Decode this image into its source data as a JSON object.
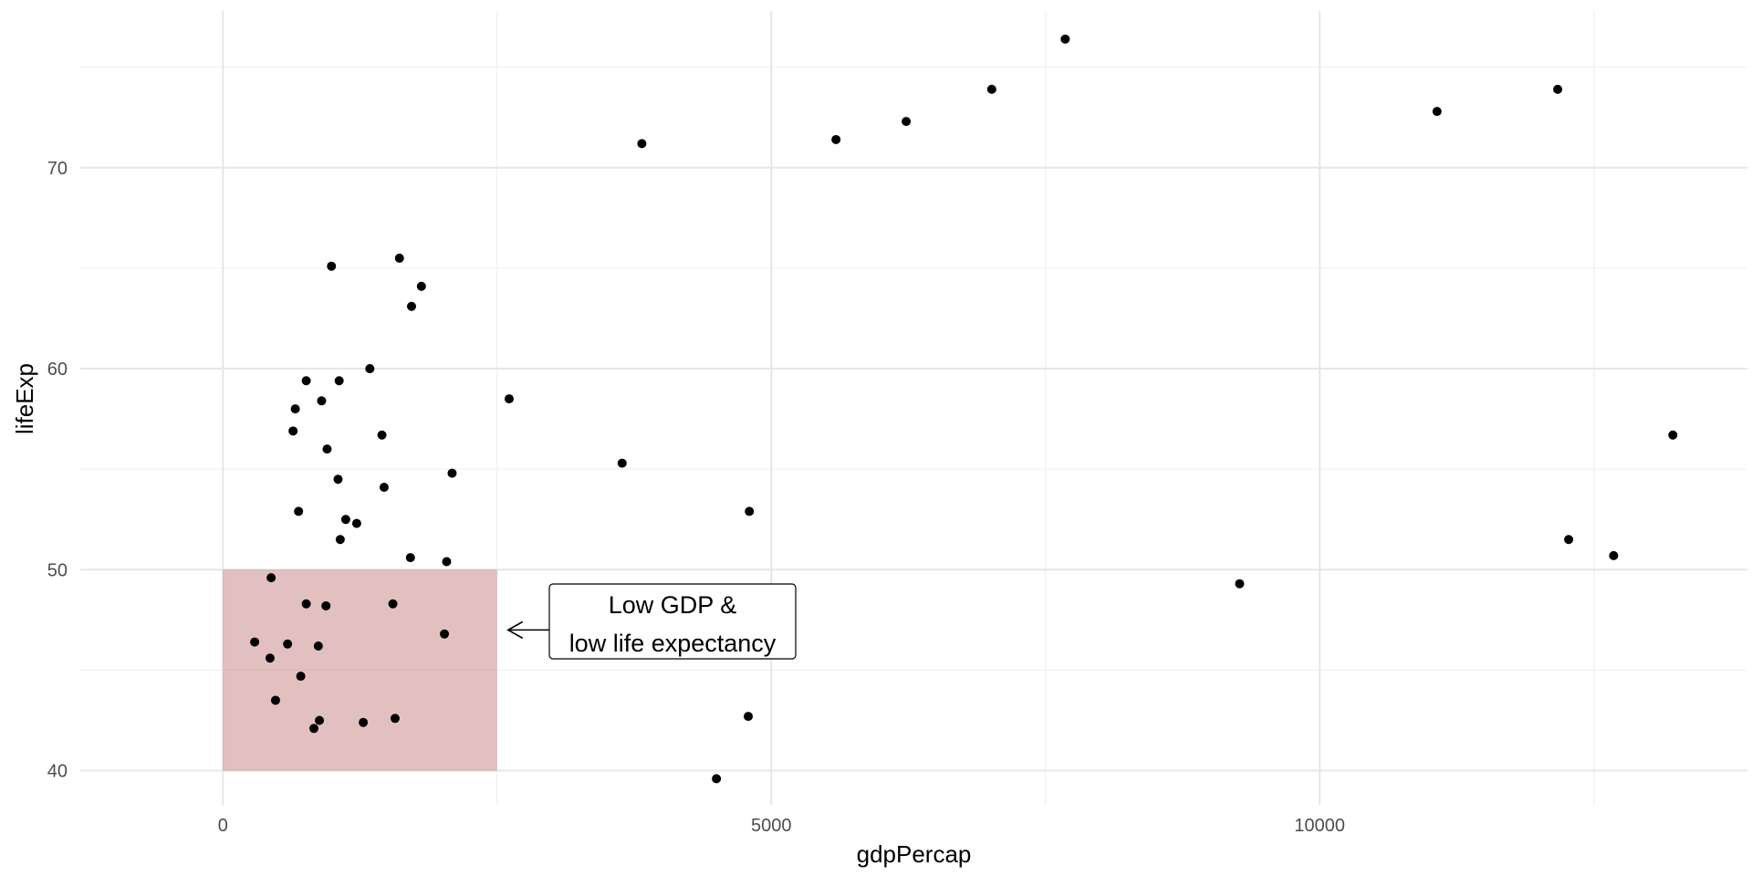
{
  "chart_data": {
    "type": "scatter",
    "title": "",
    "xlabel": "gdpPercap",
    "ylabel": "lifeExp",
    "xlim": [
      -1300,
      13900
    ],
    "ylim": [
      38.3,
      77.8
    ],
    "x_major_ticks": [
      0,
      5000,
      10000
    ],
    "x_tick_labels": [
      "0",
      "5000",
      "10000"
    ],
    "x_minor_ticks": [
      2500,
      7500,
      12500
    ],
    "y_major_ticks": [
      40,
      50,
      60,
      70
    ],
    "y_tick_labels": [
      "40",
      "50",
      "60",
      "70"
    ],
    "y_minor_ticks": [
      45,
      55,
      65,
      75
    ],
    "grid": true,
    "point_color": "#000000",
    "highlight_region": {
      "xmin": 0,
      "xmax": 2500,
      "ymin": 40,
      "ymax": 50,
      "fill": "#b55a5a",
      "opacity": 0.38
    },
    "annotation": {
      "lines": [
        "Low GDP &",
        "low life expectancy"
      ],
      "arrow_to": [
        2600,
        47
      ]
    },
    "points": [
      {
        "x": 990,
        "y": 65.1
      },
      {
        "x": 1610,
        "y": 65.5
      },
      {
        "x": 1810,
        "y": 64.1
      },
      {
        "x": 1720,
        "y": 63.1
      },
      {
        "x": 1340,
        "y": 60.0
      },
      {
        "x": 760,
        "y": 59.4
      },
      {
        "x": 1060,
        "y": 59.4
      },
      {
        "x": 660,
        "y": 58.0
      },
      {
        "x": 900,
        "y": 58.4
      },
      {
        "x": 640,
        "y": 56.9
      },
      {
        "x": 1450,
        "y": 56.7
      },
      {
        "x": 950,
        "y": 56.0
      },
      {
        "x": 1050,
        "y": 54.5
      },
      {
        "x": 2090,
        "y": 54.8
      },
      {
        "x": 1470,
        "y": 54.1
      },
      {
        "x": 690,
        "y": 52.9
      },
      {
        "x": 1120,
        "y": 52.5
      },
      {
        "x": 1220,
        "y": 52.3
      },
      {
        "x": 1070,
        "y": 51.5
      },
      {
        "x": 1710,
        "y": 50.6
      },
      {
        "x": 2040,
        "y": 50.4
      },
      {
        "x": 440,
        "y": 49.6
      },
      {
        "x": 760,
        "y": 48.3
      },
      {
        "x": 940,
        "y": 48.2
      },
      {
        "x": 1550,
        "y": 48.3
      },
      {
        "x": 2020,
        "y": 46.8
      },
      {
        "x": 290,
        "y": 46.4
      },
      {
        "x": 590,
        "y": 46.3
      },
      {
        "x": 870,
        "y": 46.2
      },
      {
        "x": 430,
        "y": 45.6
      },
      {
        "x": 710,
        "y": 44.7
      },
      {
        "x": 480,
        "y": 43.5
      },
      {
        "x": 880,
        "y": 42.5
      },
      {
        "x": 1570,
        "y": 42.6
      },
      {
        "x": 1280,
        "y": 42.4
      },
      {
        "x": 830,
        "y": 42.1
      },
      {
        "x": 2610,
        "y": 58.5
      },
      {
        "x": 3640,
        "y": 55.3
      },
      {
        "x": 3820,
        "y": 71.2
      },
      {
        "x": 4800,
        "y": 52.9
      },
      {
        "x": 4790,
        "y": 42.7
      },
      {
        "x": 4500,
        "y": 39.6
      },
      {
        "x": 5590,
        "y": 71.4
      },
      {
        "x": 6230,
        "y": 72.3
      },
      {
        "x": 7010,
        "y": 73.9
      },
      {
        "x": 7680,
        "y": 76.4
      },
      {
        "x": 9270,
        "y": 49.3
      },
      {
        "x": 11070,
        "y": 72.8
      },
      {
        "x": 12170,
        "y": 73.9
      },
      {
        "x": 12270,
        "y": 51.5
      },
      {
        "x": 12680,
        "y": 50.7
      },
      {
        "x": 13220,
        "y": 56.7
      }
    ]
  }
}
